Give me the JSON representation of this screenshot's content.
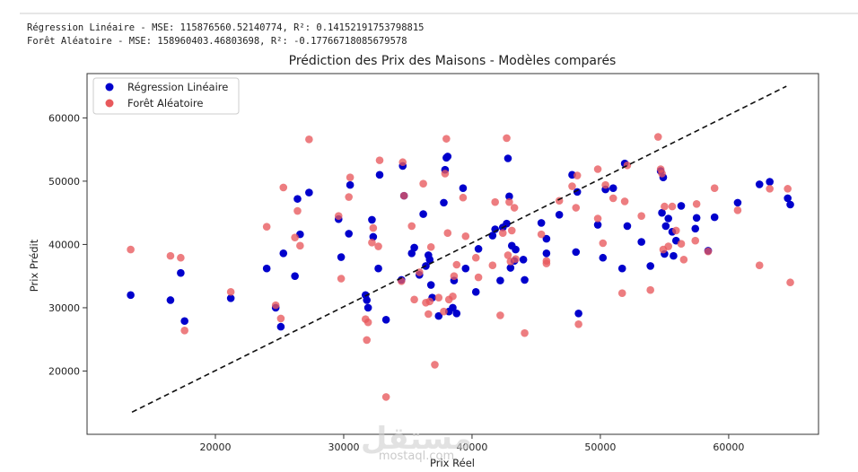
{
  "console": {
    "line1": "Régression Linéaire - MSE: 115876560.52140774, R²: 0.14152191753798815",
    "line2": "Forêt Aléatoire - MSE: 158960403.46803698, R²: -0.17766718085679578"
  },
  "watermark": {
    "main": "مستقل",
    "sub": "mostaql.com"
  },
  "chart_data": {
    "type": "scatter",
    "title": "Prédiction des Prix des Maisons - Modèles comparés",
    "xlabel": "Prix Réel",
    "ylabel": "Prix Prédit",
    "xlim": [
      10000,
      67000
    ],
    "ylim": [
      10000,
      67000
    ],
    "x_ticks": [
      20000,
      30000,
      40000,
      50000,
      60000
    ],
    "y_ticks": [
      20000,
      30000,
      40000,
      50000,
      60000
    ],
    "grid": false,
    "legend_position": "top-left",
    "reference_line": {
      "style": "dashed",
      "color": "#111111",
      "from": [
        13500,
        13500
      ],
      "to": [
        64500,
        65000
      ]
    },
    "series": [
      {
        "name": "Régression Linéaire",
        "color": "#0000cc",
        "points": [
          [
            13400,
            32000
          ],
          [
            16500,
            31200
          ],
          [
            17300,
            35500
          ],
          [
            17600,
            27900
          ],
          [
            21200,
            31500
          ],
          [
            24000,
            36200
          ],
          [
            24700,
            30000
          ],
          [
            25100,
            27000
          ],
          [
            25300,
            38600
          ],
          [
            26200,
            35000
          ],
          [
            26400,
            47200
          ],
          [
            26600,
            41600
          ],
          [
            27300,
            48200
          ],
          [
            29600,
            44000
          ],
          [
            29800,
            38000
          ],
          [
            30400,
            41700
          ],
          [
            30500,
            49400
          ],
          [
            31700,
            32000
          ],
          [
            31800,
            31200
          ],
          [
            31900,
            30000
          ],
          [
            32200,
            43900
          ],
          [
            32300,
            41200
          ],
          [
            32700,
            36200
          ],
          [
            32800,
            51000
          ],
          [
            33300,
            28100
          ],
          [
            34500,
            34400
          ],
          [
            34600,
            52400
          ],
          [
            34700,
            47700
          ],
          [
            35300,
            38600
          ],
          [
            35500,
            39500
          ],
          [
            35900,
            35200
          ],
          [
            36200,
            44800
          ],
          [
            36400,
            36600
          ],
          [
            36600,
            38300
          ],
          [
            36700,
            37600
          ],
          [
            36800,
            33600
          ],
          [
            36900,
            31600
          ],
          [
            37400,
            28700
          ],
          [
            37800,
            46600
          ],
          [
            37900,
            51800
          ],
          [
            38000,
            53700
          ],
          [
            38100,
            53900
          ],
          [
            38200,
            29400
          ],
          [
            38500,
            30000
          ],
          [
            38600,
            34300
          ],
          [
            38800,
            29100
          ],
          [
            39300,
            48900
          ],
          [
            39500,
            36200
          ],
          [
            40300,
            32500
          ],
          [
            40500,
            39300
          ],
          [
            41600,
            41400
          ],
          [
            41800,
            42400
          ],
          [
            42200,
            34300
          ],
          [
            42400,
            42700
          ],
          [
            42700,
            43300
          ],
          [
            42800,
            53600
          ],
          [
            42900,
            47600
          ],
          [
            43000,
            36300
          ],
          [
            43100,
            39800
          ],
          [
            43300,
            37400
          ],
          [
            43400,
            39200
          ],
          [
            44100,
            34400
          ],
          [
            44000,
            37600
          ],
          [
            45400,
            43400
          ],
          [
            45800,
            38600
          ],
          [
            45800,
            40900
          ],
          [
            46800,
            44700
          ],
          [
            47800,
            51000
          ],
          [
            48100,
            38800
          ],
          [
            48200,
            48300
          ],
          [
            48300,
            29100
          ],
          [
            49800,
            43100
          ],
          [
            50200,
            37900
          ],
          [
            50400,
            48700
          ],
          [
            51000,
            48900
          ],
          [
            51700,
            36200
          ],
          [
            51900,
            52800
          ],
          [
            52100,
            42900
          ],
          [
            53200,
            40400
          ],
          [
            53900,
            36600
          ],
          [
            54700,
            51600
          ],
          [
            54800,
            45000
          ],
          [
            54900,
            50600
          ],
          [
            55000,
            38500
          ],
          [
            55100,
            42900
          ],
          [
            55300,
            44100
          ],
          [
            55600,
            42000
          ],
          [
            55700,
            38200
          ],
          [
            55900,
            40600
          ],
          [
            56300,
            46100
          ],
          [
            57400,
            42500
          ],
          [
            57500,
            44200
          ],
          [
            58400,
            39000
          ],
          [
            58900,
            44300
          ],
          [
            60700,
            46600
          ],
          [
            62400,
            49500
          ],
          [
            63200,
            49900
          ],
          [
            64600,
            47300
          ],
          [
            64800,
            46300
          ]
        ]
      },
      {
        "name": "Forêt Aléatoire",
        "color": "#e8595c",
        "points": [
          [
            13400,
            39200
          ],
          [
            16500,
            38200
          ],
          [
            17300,
            37900
          ],
          [
            17600,
            26400
          ],
          [
            21200,
            32500
          ],
          [
            24000,
            42800
          ],
          [
            24700,
            30400
          ],
          [
            25100,
            28300
          ],
          [
            25300,
            49000
          ],
          [
            26200,
            41100
          ],
          [
            26400,
            45300
          ],
          [
            26600,
            39800
          ],
          [
            27300,
            56600
          ],
          [
            29600,
            44500
          ],
          [
            29800,
            34600
          ],
          [
            30400,
            47500
          ],
          [
            30500,
            50600
          ],
          [
            31700,
            28200
          ],
          [
            31800,
            24900
          ],
          [
            31900,
            27700
          ],
          [
            32200,
            40300
          ],
          [
            32300,
            42600
          ],
          [
            32700,
            39700
          ],
          [
            32800,
            53300
          ],
          [
            33300,
            15900
          ],
          [
            34500,
            34200
          ],
          [
            34600,
            53000
          ],
          [
            34700,
            47700
          ],
          [
            35300,
            42900
          ],
          [
            35500,
            31300
          ],
          [
            35900,
            35600
          ],
          [
            36200,
            49600
          ],
          [
            36400,
            30800
          ],
          [
            36600,
            29000
          ],
          [
            36700,
            31000
          ],
          [
            36800,
            39600
          ],
          [
            37100,
            21000
          ],
          [
            37400,
            31600
          ],
          [
            37800,
            29400
          ],
          [
            37900,
            51200
          ],
          [
            38000,
            56700
          ],
          [
            38100,
            41800
          ],
          [
            38200,
            31300
          ],
          [
            38500,
            31800
          ],
          [
            38600,
            35000
          ],
          [
            38800,
            36800
          ],
          [
            39300,
            47400
          ],
          [
            39500,
            41300
          ],
          [
            40300,
            37900
          ],
          [
            40500,
            34800
          ],
          [
            41600,
            36700
          ],
          [
            41800,
            46700
          ],
          [
            42200,
            28800
          ],
          [
            42400,
            41800
          ],
          [
            42700,
            56800
          ],
          [
            42800,
            38300
          ],
          [
            42900,
            46700
          ],
          [
            43000,
            37300
          ],
          [
            43100,
            42200
          ],
          [
            43300,
            45800
          ],
          [
            43400,
            37700
          ],
          [
            44100,
            26000
          ],
          [
            45400,
            41600
          ],
          [
            45800,
            37000
          ],
          [
            45800,
            37400
          ],
          [
            46800,
            46900
          ],
          [
            47800,
            49200
          ],
          [
            48100,
            45800
          ],
          [
            48200,
            50900
          ],
          [
            48300,
            27400
          ],
          [
            49800,
            51900
          ],
          [
            49800,
            44100
          ],
          [
            50200,
            40200
          ],
          [
            50400,
            49400
          ],
          [
            51000,
            47300
          ],
          [
            51700,
            32300
          ],
          [
            51900,
            46800
          ],
          [
            52100,
            52500
          ],
          [
            53200,
            44500
          ],
          [
            53900,
            32800
          ],
          [
            54500,
            57000
          ],
          [
            54700,
            51900
          ],
          [
            54800,
            51200
          ],
          [
            54900,
            39200
          ],
          [
            55000,
            46000
          ],
          [
            55300,
            39700
          ],
          [
            55600,
            46000
          ],
          [
            55900,
            42200
          ],
          [
            56300,
            40100
          ],
          [
            56500,
            37600
          ],
          [
            57400,
            40600
          ],
          [
            57500,
            46400
          ],
          [
            58400,
            38900
          ],
          [
            58900,
            48900
          ],
          [
            60700,
            45400
          ],
          [
            62400,
            36700
          ],
          [
            63200,
            48800
          ],
          [
            64600,
            48800
          ],
          [
            64800,
            34000
          ]
        ]
      }
    ]
  }
}
